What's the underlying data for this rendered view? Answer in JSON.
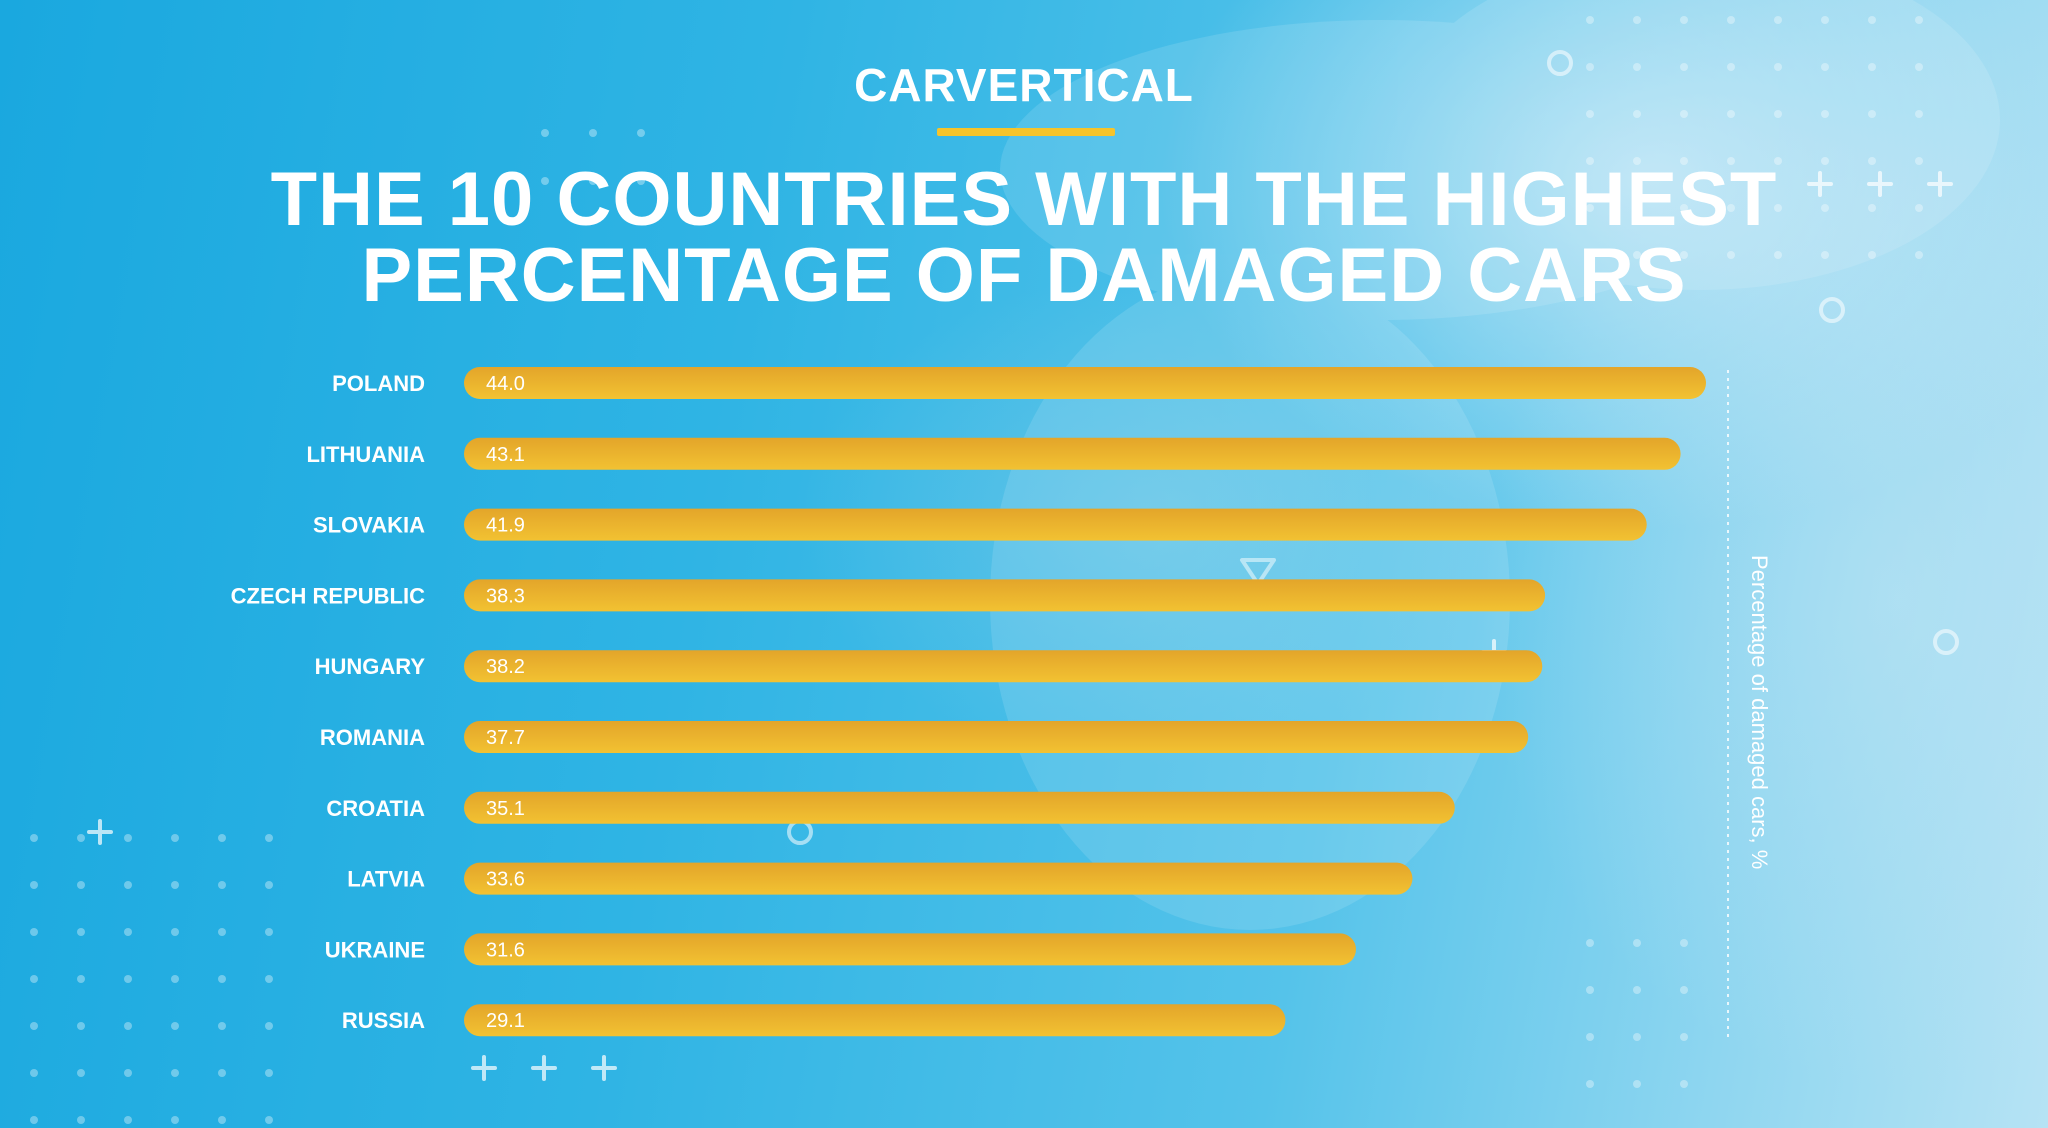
{
  "brand": {
    "logo_text": "CARVERTICAL",
    "accent_color": "#f6c42b"
  },
  "title": {
    "line1": "THE 10 COUNTRIES WITH THE HIGHEST",
    "line2": "PERCENTAGE OF DAMAGED CARS"
  },
  "chart_data": {
    "type": "bar",
    "orientation": "horizontal",
    "categories": [
      "POLAND",
      "LITHUANIA",
      "SLOVAKIA",
      "CZECH REPUBLIC",
      "HUNGARY",
      "ROMANIA",
      "CROATIA",
      "LATVIA",
      "UKRAINE",
      "RUSSIA"
    ],
    "values": [
      44.0,
      43.1,
      41.9,
      38.3,
      38.2,
      37.7,
      35.1,
      33.6,
      31.6,
      29.1
    ],
    "value_labels": [
      "44.0",
      "43.1",
      "41.9",
      "38.3",
      "38.2",
      "37.7",
      "35.1",
      "33.6",
      "31.6",
      "29.1"
    ],
    "title": "THE 10 COUNTRIES WITH THE HIGHEST PERCENTAGE OF DAMAGED CARS",
    "axis_label": "Percentage of damaged cars, %",
    "xlim": [
      0,
      44.0
    ],
    "grid": false,
    "bar_colors": {
      "top": "#e3a52a",
      "bottom": "#f2c232"
    }
  }
}
